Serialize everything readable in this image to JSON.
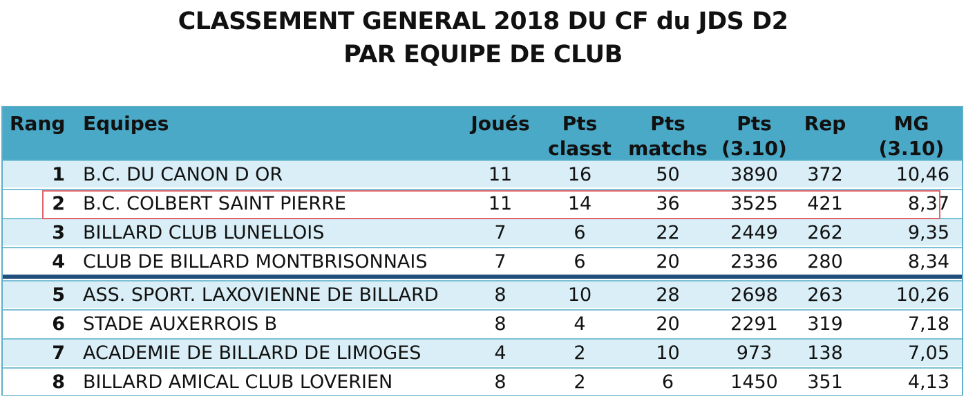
{
  "title": {
    "line1": "CLASSEMENT GENERAL 2018 DU CF du JDS D2",
    "line2": "PAR EQUIPE DE CLUB"
  },
  "columns": {
    "rang": "Rang",
    "equipes": "Equipes",
    "joues": "Joués",
    "pts_classt": "Pts\nclasst",
    "pts_matchs": "Pts\nmatchs",
    "pts_310": "Pts\n(3.10)",
    "rep": "Rep",
    "mg_310": "MG\n(3.10)"
  },
  "rows": [
    {
      "rang": "1",
      "equipe": "B.C. DU CANON D OR",
      "joues": "11",
      "pts_classt": "16",
      "pts_matchs": "50",
      "pts_310": "3890",
      "rep": "372",
      "mg": "10,46"
    },
    {
      "rang": "2",
      "equipe": "B.C. COLBERT SAINT PIERRE",
      "joues": "11",
      "pts_classt": "14",
      "pts_matchs": "36",
      "pts_310": "3525",
      "rep": "421",
      "mg": "8,37"
    },
    {
      "rang": "3",
      "equipe": "BILLARD CLUB LUNELLOIS",
      "joues": "7",
      "pts_classt": "6",
      "pts_matchs": "22",
      "pts_310": "2449",
      "rep": "262",
      "mg": "9,35"
    },
    {
      "rang": "4",
      "equipe": "CLUB DE BILLARD MONTBRISONNAIS",
      "joues": "7",
      "pts_classt": "6",
      "pts_matchs": "20",
      "pts_310": "2336",
      "rep": "280",
      "mg": "8,34"
    },
    {
      "rang": "5",
      "equipe": "ASS. SPORT. LAXOVIENNE DE BILLARD",
      "joues": "8",
      "pts_classt": "10",
      "pts_matchs": "28",
      "pts_310": "2698",
      "rep": "263",
      "mg": "10,26"
    },
    {
      "rang": "6",
      "equipe": "STADE AUXERROIS B",
      "joues": "8",
      "pts_classt": "4",
      "pts_matchs": "20",
      "pts_310": "2291",
      "rep": "319",
      "mg": "7,18"
    },
    {
      "rang": "7",
      "equipe": "ACADEMIE DE BILLARD DE LIMOGES",
      "joues": "4",
      "pts_classt": "2",
      "pts_matchs": "10",
      "pts_310": "973",
      "rep": "138",
      "mg": "7,05"
    },
    {
      "rang": "8",
      "equipe": "BILLARD AMICAL CLUB LOVERIEN",
      "joues": "8",
      "pts_classt": "2",
      "pts_matchs": "6",
      "pts_310": "1450",
      "rep": "351",
      "mg": "4,13"
    }
  ],
  "highlighted_row": 2,
  "colors": {
    "header_bg": "#4aa9c7",
    "odd_row_bg": "#d9eef6",
    "separator": "#1f4f7a",
    "highlight_border": "#e0666b"
  }
}
